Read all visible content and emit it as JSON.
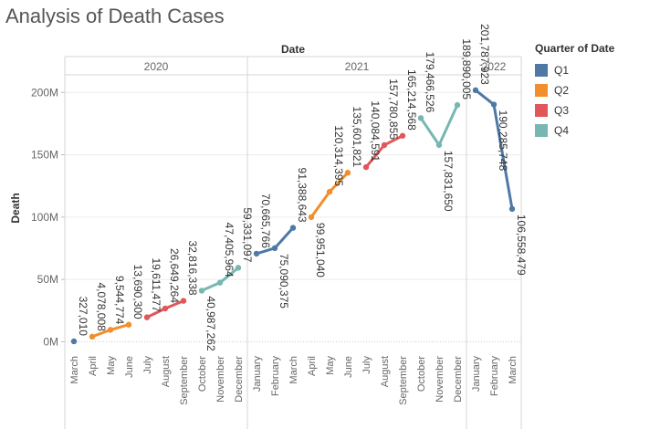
{
  "title": "Analysis of Death Cases",
  "legend": {
    "title": "Quarter of Date",
    "items": [
      {
        "label": "Q1",
        "color": "#4e79a7"
      },
      {
        "label": "Q2",
        "color": "#f28e2b"
      },
      {
        "label": "Q3",
        "color": "#e15759"
      },
      {
        "label": "Q4",
        "color": "#76b7b2"
      }
    ]
  },
  "chart_data": {
    "type": "line",
    "xlabel": "Date",
    "ylabel": "Death",
    "ylim": [
      0,
      215000000
    ],
    "yticks": [
      0,
      50000000,
      100000000,
      150000000,
      200000000
    ],
    "ytick_labels": [
      "0M",
      "50M",
      "100M",
      "150M",
      "200M"
    ],
    "years": [
      {
        "label": "2020",
        "months": [
          "March",
          "April",
          "May",
          "June",
          "July",
          "August",
          "September",
          "October",
          "November",
          "December"
        ]
      },
      {
        "label": "2021",
        "months": [
          "January",
          "February",
          "March",
          "April",
          "May",
          "June",
          "July",
          "August",
          "September",
          "October",
          "November",
          "December"
        ]
      },
      {
        "label": "2022",
        "months": [
          "January",
          "February",
          "March"
        ]
      }
    ],
    "series": [
      {
        "name": "Q1",
        "color": "#4e79a7",
        "year": "2020",
        "x": [
          "March"
        ],
        "values": [
          327010
        ],
        "labels": [
          "327,010"
        ]
      },
      {
        "name": "Q2",
        "color": "#f28e2b",
        "year": "2020",
        "x": [
          "April",
          "May",
          "June"
        ],
        "values": [
          4078008,
          9544774,
          13690300
        ],
        "labels": [
          "4,078,008",
          "9,544,774",
          "13,690,300"
        ]
      },
      {
        "name": "Q3",
        "color": "#e15759",
        "year": "2020",
        "x": [
          "July",
          "August",
          "September"
        ],
        "values": [
          19611477,
          26649264,
          32816338
        ],
        "labels": [
          "19,611,477",
          "26,649,264",
          "32,816,338"
        ]
      },
      {
        "name": "Q4",
        "color": "#76b7b2",
        "year": "2020",
        "x": [
          "October",
          "November",
          "December"
        ],
        "values": [
          40987262,
          47405964,
          59331097
        ],
        "labels": [
          "40,987,262",
          "47,405,964",
          "59,331,097"
        ]
      },
      {
        "name": "Q1",
        "color": "#4e79a7",
        "year": "2021",
        "x": [
          "January",
          "February",
          "March"
        ],
        "values": [
          70665766,
          75090375,
          91388643
        ],
        "labels": [
          "70,665,766",
          "75,090,375",
          "91,388,643"
        ]
      },
      {
        "name": "Q2",
        "color": "#f28e2b",
        "year": "2021",
        "x": [
          "April",
          "May",
          "June"
        ],
        "values": [
          99951040,
          120314395,
          135601821
        ],
        "labels": [
          "99,951,040",
          "120,314,395",
          "135,601,821"
        ]
      },
      {
        "name": "Q3",
        "color": "#e15759",
        "year": "2021",
        "x": [
          "July",
          "August",
          "September"
        ],
        "values": [
          140084591,
          157780855,
          165214568
        ],
        "labels": [
          "140,084,591",
          "157,780,855",
          "165,214,568"
        ]
      },
      {
        "name": "Q4",
        "color": "#76b7b2",
        "year": "2021",
        "x": [
          "October",
          "November",
          "December"
        ],
        "values": [
          179466526,
          157831650,
          189890005
        ],
        "labels": [
          "179,466,526",
          "157,831,650",
          "189,890,005"
        ]
      },
      {
        "name": "Q1",
        "color": "#4e79a7",
        "year": "2022",
        "x": [
          "January",
          "February",
          "March"
        ],
        "values": [
          201787923,
          190285748,
          106558479
        ],
        "labels": [
          "201,787,923",
          "190,285,748",
          "106,558,479"
        ]
      }
    ]
  }
}
